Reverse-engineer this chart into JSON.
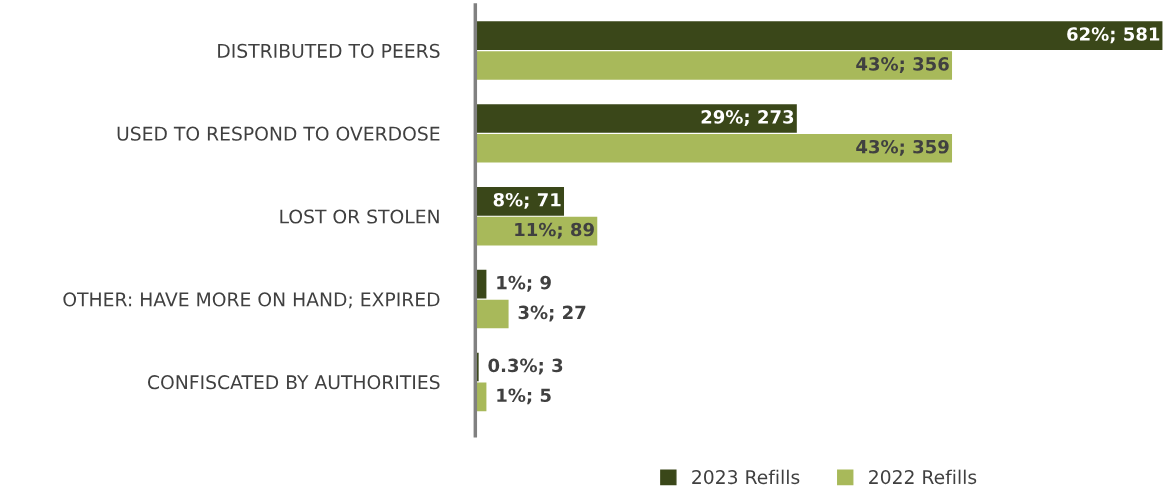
{
  "chart_data": {
    "type": "bar",
    "orientation": "horizontal",
    "categories": [
      "DISTRIBUTED TO PEERS",
      "USED TO RESPOND TO OVERDOSE",
      "LOST OR STOLEN",
      "OTHER: HAVE MORE ON HAND; EXPIRED",
      "CONFISCATED BY AUTHORITIES"
    ],
    "series": [
      {
        "name": "2023 Refills",
        "color": "#3a4719",
        "values": [
          62,
          29,
          8,
          1,
          0.3
        ],
        "value_labels": [
          "62%; 581",
          "29%; 273",
          "8%; 71",
          "1%; 9",
          "0.3%; 3"
        ]
      },
      {
        "name": "2022 Refills",
        "color": "#a8b95a",
        "values": [
          43,
          43,
          11,
          3,
          1
        ],
        "value_labels": [
          "43%; 356",
          "43%; 359",
          "11%; 89",
          "3%; 27",
          "1%; 5"
        ]
      }
    ],
    "xlim": [
      0,
      62
    ],
    "tick_labels": "y",
    "grid": false,
    "legend": "bottom"
  }
}
